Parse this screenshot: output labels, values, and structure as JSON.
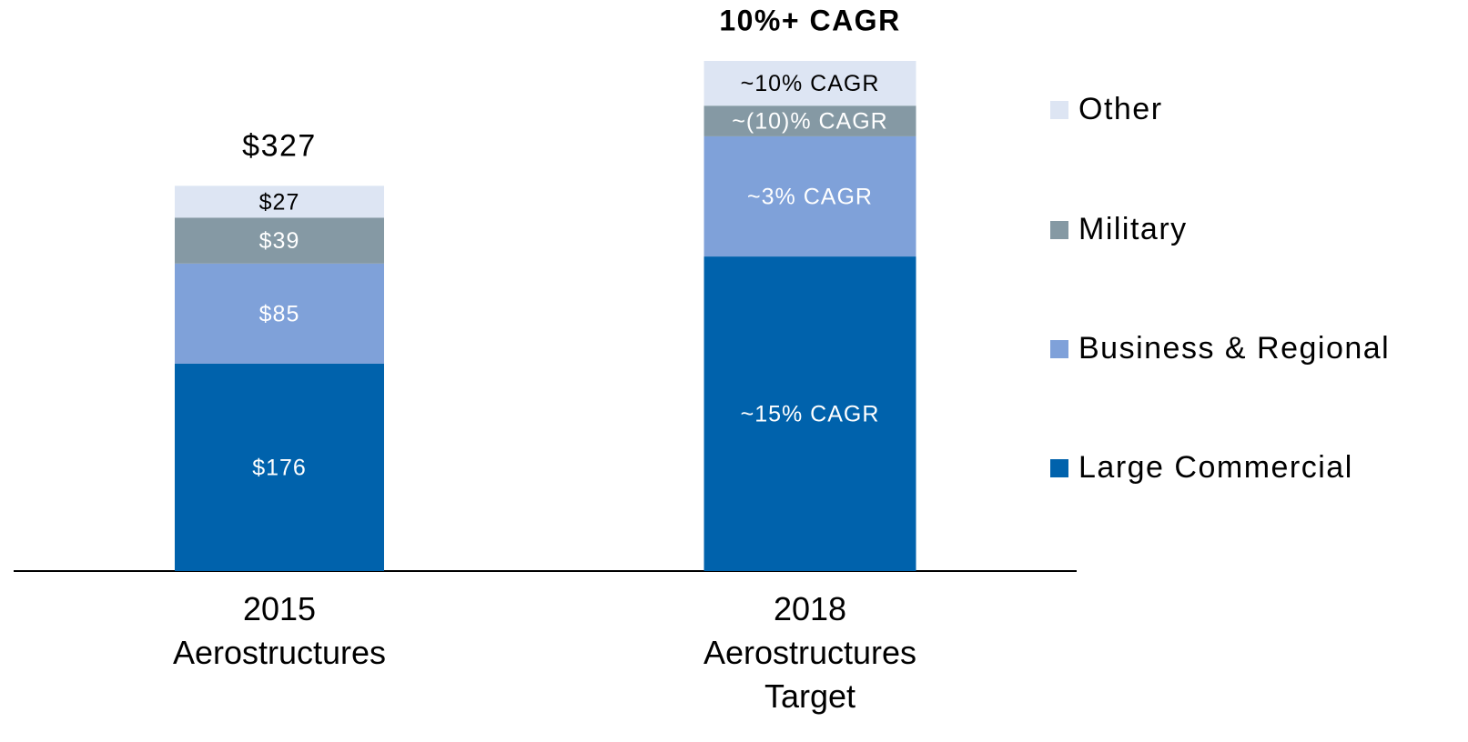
{
  "chart_data": {
    "type": "stacked_bar",
    "categories": [
      "2015\nAerostructures",
      "2018\nAerostructures\nTarget"
    ],
    "series": [
      {
        "name": "Large Commercial",
        "color": "#0062ac",
        "values": [
          176,
          267
        ],
        "value_labels": [
          "$176",
          null
        ],
        "growth_label": "~15% CAGR"
      },
      {
        "name": "Business & Regional",
        "color": "#7fa1d9",
        "values": [
          85,
          102
        ],
        "value_labels": [
          "$85",
          null
        ],
        "growth_label": "~3% CAGR"
      },
      {
        "name": "Military",
        "color": "#8599a4",
        "values": [
          39,
          26
        ],
        "value_labels": [
          "$39",
          null
        ],
        "growth_label": "~(10)% CAGR"
      },
      {
        "name": "Other",
        "color": "#dde5f3",
        "values": [
          27,
          38
        ],
        "value_labels": [
          "$27",
          null
        ],
        "growth_label": "~10% CAGR"
      }
    ],
    "total_labels": [
      "$327",
      "10%+ CAGR"
    ],
    "ylim": [
      0,
      433
    ],
    "legend": "right"
  }
}
